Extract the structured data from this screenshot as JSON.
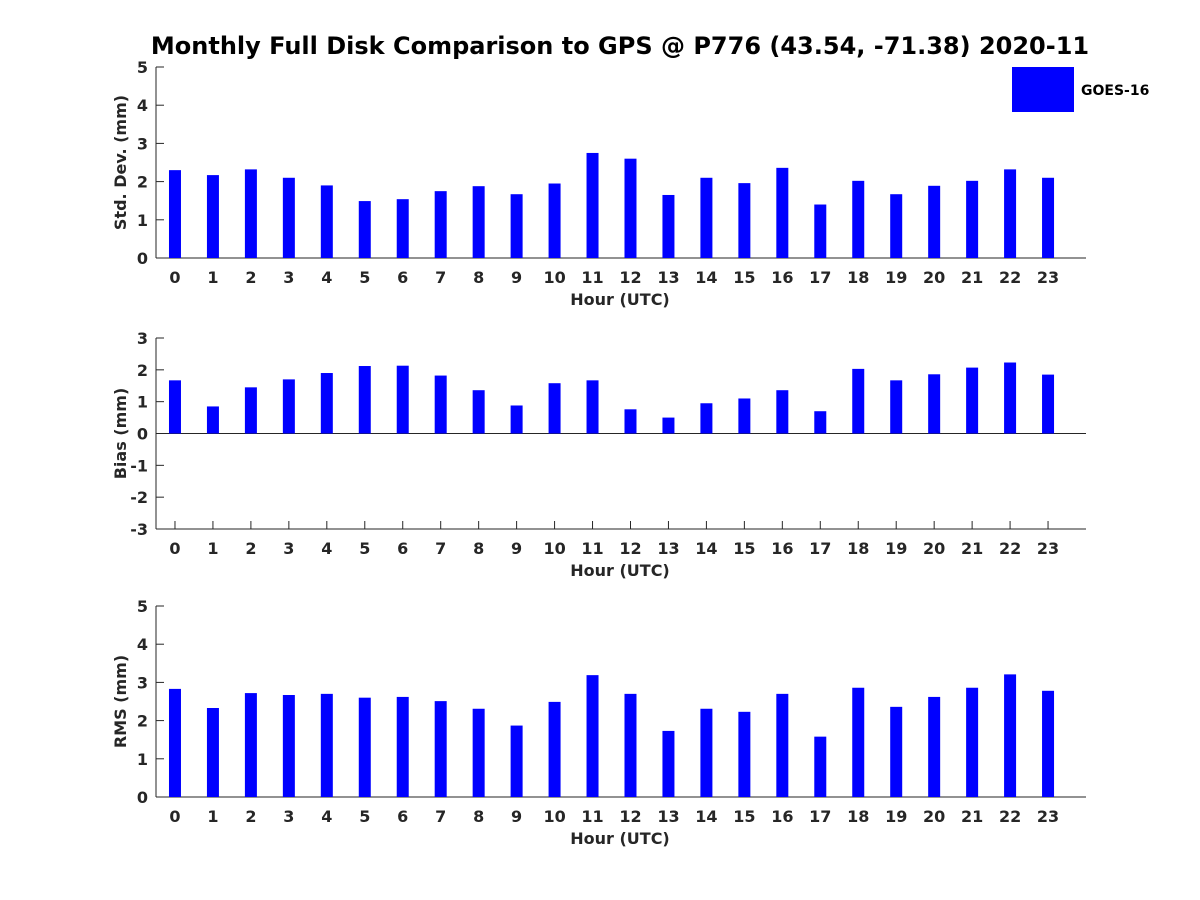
{
  "title": "Monthly Full Disk Comparison to GPS @ P776 (43.54, -71.38) 2020-11",
  "legend": {
    "label": "GOES-16",
    "color": "#0000ff"
  },
  "chart_data": [
    {
      "type": "bar",
      "name": "stddev",
      "ylabel": "Std. Dev. (mm)",
      "xlabel": "Hour (UTC)",
      "ylim": [
        0,
        5
      ],
      "yticks": [
        0,
        1,
        2,
        3,
        4,
        5
      ],
      "categories": [
        "0",
        "1",
        "2",
        "3",
        "4",
        "5",
        "6",
        "7",
        "8",
        "9",
        "10",
        "11",
        "12",
        "13",
        "14",
        "15",
        "16",
        "17",
        "18",
        "19",
        "20",
        "21",
        "22",
        "23"
      ],
      "series": [
        {
          "name": "GOES-16",
          "values": [
            2.3,
            2.17,
            2.32,
            2.1,
            1.9,
            1.49,
            1.54,
            1.75,
            1.88,
            1.67,
            1.95,
            2.75,
            2.6,
            1.65,
            2.1,
            1.96,
            2.36,
            1.4,
            2.02,
            1.67,
            1.89,
            2.02,
            2.32,
            2.1
          ]
        }
      ]
    },
    {
      "type": "bar",
      "name": "bias",
      "ylabel": "Bias (mm)",
      "xlabel": "Hour (UTC)",
      "ylim": [
        -3,
        3
      ],
      "yticks": [
        -3,
        -2,
        -1,
        0,
        1,
        2,
        3
      ],
      "categories": [
        "0",
        "1",
        "2",
        "3",
        "4",
        "5",
        "6",
        "7",
        "8",
        "9",
        "10",
        "11",
        "12",
        "13",
        "14",
        "15",
        "16",
        "17",
        "18",
        "19",
        "20",
        "21",
        "22",
        "23"
      ],
      "series": [
        {
          "name": "GOES-16",
          "values": [
            1.67,
            0.85,
            1.45,
            1.7,
            1.9,
            2.12,
            2.13,
            1.82,
            1.36,
            0.88,
            1.58,
            1.67,
            0.76,
            0.5,
            0.95,
            1.1,
            1.36,
            0.7,
            2.03,
            1.67,
            1.86,
            2.07,
            2.23,
            1.85
          ]
        }
      ]
    },
    {
      "type": "bar",
      "name": "rms",
      "ylabel": "RMS (mm)",
      "xlabel": "Hour (UTC)",
      "ylim": [
        0,
        5
      ],
      "yticks": [
        0,
        1,
        2,
        3,
        4,
        5
      ],
      "categories": [
        "0",
        "1",
        "2",
        "3",
        "4",
        "5",
        "6",
        "7",
        "8",
        "9",
        "10",
        "11",
        "12",
        "13",
        "14",
        "15",
        "16",
        "17",
        "18",
        "19",
        "20",
        "21",
        "22",
        "23"
      ],
      "series": [
        {
          "name": "GOES-16",
          "values": [
            2.83,
            2.33,
            2.72,
            2.67,
            2.7,
            2.6,
            2.62,
            2.51,
            2.31,
            1.87,
            2.49,
            3.19,
            2.7,
            1.73,
            2.31,
            2.23,
            2.7,
            1.58,
            2.86,
            2.36,
            2.62,
            2.86,
            3.21,
            2.78
          ]
        }
      ]
    }
  ]
}
